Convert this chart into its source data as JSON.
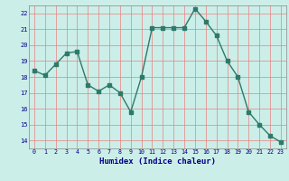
{
  "x": [
    0,
    1,
    2,
    3,
    4,
    5,
    6,
    7,
    8,
    9,
    10,
    11,
    12,
    13,
    14,
    15,
    16,
    17,
    18,
    19,
    20,
    21,
    22,
    23
  ],
  "y": [
    18.4,
    18.1,
    18.8,
    19.5,
    19.6,
    17.5,
    17.1,
    17.5,
    17.0,
    15.8,
    18.0,
    21.1,
    21.1,
    21.1,
    21.1,
    22.3,
    21.5,
    20.6,
    19.0,
    18.0,
    15.8,
    15.0,
    14.3,
    13.9
  ],
  "xlabel": "Humidex (Indice chaleur)",
  "ylim": [
    13.5,
    22.5
  ],
  "xlim": [
    -0.5,
    23.5
  ],
  "yticks": [
    14,
    15,
    16,
    17,
    18,
    19,
    20,
    21,
    22
  ],
  "xticks": [
    0,
    1,
    2,
    3,
    4,
    5,
    6,
    7,
    8,
    9,
    10,
    11,
    12,
    13,
    14,
    15,
    16,
    17,
    18,
    19,
    20,
    21,
    22,
    23
  ],
  "line_color": "#2d7a6a",
  "marker_color": "#2d7a6a",
  "bg_color": "#cceee8",
  "grid_color_h": "#e88080",
  "grid_color_v": "#e88080",
  "xlabel_color": "#00008b",
  "tick_color": "#00008b",
  "fig_bg": "#cceee8",
  "spine_color": "#888888"
}
